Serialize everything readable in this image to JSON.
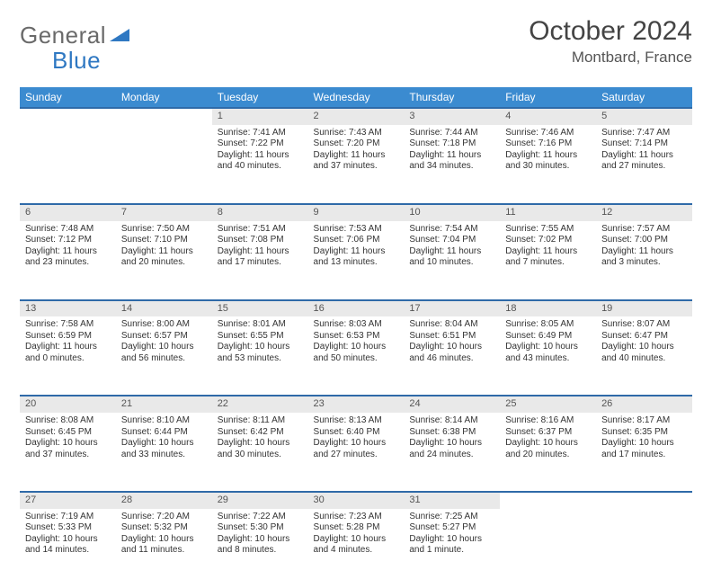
{
  "brand": {
    "part1": "General",
    "part2": "Blue"
  },
  "title": "October 2024",
  "location": "Montbard, France",
  "colors": {
    "header_bg": "#3b8bd0",
    "header_text": "#ffffff",
    "daynum_bg": "#e9e9e9",
    "row_border": "#2f6aa8",
    "text": "#333333",
    "brand_gray": "#6a6a6a",
    "brand_blue": "#2f78c2"
  },
  "columns": [
    "Sunday",
    "Monday",
    "Tuesday",
    "Wednesday",
    "Thursday",
    "Friday",
    "Saturday"
  ],
  "weeks": [
    {
      "nums": [
        "",
        "",
        "1",
        "2",
        "3",
        "4",
        "5"
      ],
      "cells": [
        null,
        null,
        {
          "sunrise": "Sunrise: 7:41 AM",
          "sunset": "Sunset: 7:22 PM",
          "day1": "Daylight: 11 hours",
          "day2": "and 40 minutes."
        },
        {
          "sunrise": "Sunrise: 7:43 AM",
          "sunset": "Sunset: 7:20 PM",
          "day1": "Daylight: 11 hours",
          "day2": "and 37 minutes."
        },
        {
          "sunrise": "Sunrise: 7:44 AM",
          "sunset": "Sunset: 7:18 PM",
          "day1": "Daylight: 11 hours",
          "day2": "and 34 minutes."
        },
        {
          "sunrise": "Sunrise: 7:46 AM",
          "sunset": "Sunset: 7:16 PM",
          "day1": "Daylight: 11 hours",
          "day2": "and 30 minutes."
        },
        {
          "sunrise": "Sunrise: 7:47 AM",
          "sunset": "Sunset: 7:14 PM",
          "day1": "Daylight: 11 hours",
          "day2": "and 27 minutes."
        }
      ]
    },
    {
      "nums": [
        "6",
        "7",
        "8",
        "9",
        "10",
        "11",
        "12"
      ],
      "cells": [
        {
          "sunrise": "Sunrise: 7:48 AM",
          "sunset": "Sunset: 7:12 PM",
          "day1": "Daylight: 11 hours",
          "day2": "and 23 minutes."
        },
        {
          "sunrise": "Sunrise: 7:50 AM",
          "sunset": "Sunset: 7:10 PM",
          "day1": "Daylight: 11 hours",
          "day2": "and 20 minutes."
        },
        {
          "sunrise": "Sunrise: 7:51 AM",
          "sunset": "Sunset: 7:08 PM",
          "day1": "Daylight: 11 hours",
          "day2": "and 17 minutes."
        },
        {
          "sunrise": "Sunrise: 7:53 AM",
          "sunset": "Sunset: 7:06 PM",
          "day1": "Daylight: 11 hours",
          "day2": "and 13 minutes."
        },
        {
          "sunrise": "Sunrise: 7:54 AM",
          "sunset": "Sunset: 7:04 PM",
          "day1": "Daylight: 11 hours",
          "day2": "and 10 minutes."
        },
        {
          "sunrise": "Sunrise: 7:55 AM",
          "sunset": "Sunset: 7:02 PM",
          "day1": "Daylight: 11 hours",
          "day2": "and 7 minutes."
        },
        {
          "sunrise": "Sunrise: 7:57 AM",
          "sunset": "Sunset: 7:00 PM",
          "day1": "Daylight: 11 hours",
          "day2": "and 3 minutes."
        }
      ]
    },
    {
      "nums": [
        "13",
        "14",
        "15",
        "16",
        "17",
        "18",
        "19"
      ],
      "cells": [
        {
          "sunrise": "Sunrise: 7:58 AM",
          "sunset": "Sunset: 6:59 PM",
          "day1": "Daylight: 11 hours",
          "day2": "and 0 minutes."
        },
        {
          "sunrise": "Sunrise: 8:00 AM",
          "sunset": "Sunset: 6:57 PM",
          "day1": "Daylight: 10 hours",
          "day2": "and 56 minutes."
        },
        {
          "sunrise": "Sunrise: 8:01 AM",
          "sunset": "Sunset: 6:55 PM",
          "day1": "Daylight: 10 hours",
          "day2": "and 53 minutes."
        },
        {
          "sunrise": "Sunrise: 8:03 AM",
          "sunset": "Sunset: 6:53 PM",
          "day1": "Daylight: 10 hours",
          "day2": "and 50 minutes."
        },
        {
          "sunrise": "Sunrise: 8:04 AM",
          "sunset": "Sunset: 6:51 PM",
          "day1": "Daylight: 10 hours",
          "day2": "and 46 minutes."
        },
        {
          "sunrise": "Sunrise: 8:05 AM",
          "sunset": "Sunset: 6:49 PM",
          "day1": "Daylight: 10 hours",
          "day2": "and 43 minutes."
        },
        {
          "sunrise": "Sunrise: 8:07 AM",
          "sunset": "Sunset: 6:47 PM",
          "day1": "Daylight: 10 hours",
          "day2": "and 40 minutes."
        }
      ]
    },
    {
      "nums": [
        "20",
        "21",
        "22",
        "23",
        "24",
        "25",
        "26"
      ],
      "cells": [
        {
          "sunrise": "Sunrise: 8:08 AM",
          "sunset": "Sunset: 6:45 PM",
          "day1": "Daylight: 10 hours",
          "day2": "and 37 minutes."
        },
        {
          "sunrise": "Sunrise: 8:10 AM",
          "sunset": "Sunset: 6:44 PM",
          "day1": "Daylight: 10 hours",
          "day2": "and 33 minutes."
        },
        {
          "sunrise": "Sunrise: 8:11 AM",
          "sunset": "Sunset: 6:42 PM",
          "day1": "Daylight: 10 hours",
          "day2": "and 30 minutes."
        },
        {
          "sunrise": "Sunrise: 8:13 AM",
          "sunset": "Sunset: 6:40 PM",
          "day1": "Daylight: 10 hours",
          "day2": "and 27 minutes."
        },
        {
          "sunrise": "Sunrise: 8:14 AM",
          "sunset": "Sunset: 6:38 PM",
          "day1": "Daylight: 10 hours",
          "day2": "and 24 minutes."
        },
        {
          "sunrise": "Sunrise: 8:16 AM",
          "sunset": "Sunset: 6:37 PM",
          "day1": "Daylight: 10 hours",
          "day2": "and 20 minutes."
        },
        {
          "sunrise": "Sunrise: 8:17 AM",
          "sunset": "Sunset: 6:35 PM",
          "day1": "Daylight: 10 hours",
          "day2": "and 17 minutes."
        }
      ]
    },
    {
      "nums": [
        "27",
        "28",
        "29",
        "30",
        "31",
        "",
        ""
      ],
      "cells": [
        {
          "sunrise": "Sunrise: 7:19 AM",
          "sunset": "Sunset: 5:33 PM",
          "day1": "Daylight: 10 hours",
          "day2": "and 14 minutes."
        },
        {
          "sunrise": "Sunrise: 7:20 AM",
          "sunset": "Sunset: 5:32 PM",
          "day1": "Daylight: 10 hours",
          "day2": "and 11 minutes."
        },
        {
          "sunrise": "Sunrise: 7:22 AM",
          "sunset": "Sunset: 5:30 PM",
          "day1": "Daylight: 10 hours",
          "day2": "and 8 minutes."
        },
        {
          "sunrise": "Sunrise: 7:23 AM",
          "sunset": "Sunset: 5:28 PM",
          "day1": "Daylight: 10 hours",
          "day2": "and 4 minutes."
        },
        {
          "sunrise": "Sunrise: 7:25 AM",
          "sunset": "Sunset: 5:27 PM",
          "day1": "Daylight: 10 hours",
          "day2": "and 1 minute."
        },
        null,
        null
      ]
    }
  ]
}
